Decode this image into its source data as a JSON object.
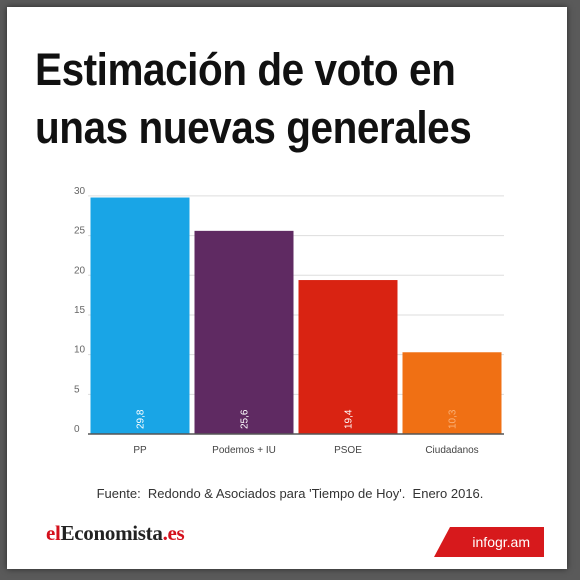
{
  "chart_data": {
    "type": "bar",
    "title": "Estimación de voto en unas nuevas generales",
    "categories": [
      "PP",
      "Podemos + IU",
      "PSOE",
      "Ciudadanos"
    ],
    "values": [
      29.8,
      25.6,
      19.4,
      10.3
    ],
    "value_labels": [
      "29,8",
      "25,6",
      "19,4",
      "10,3"
    ],
    "colors": [
      "#19a5e6",
      "#5f2a62",
      "#d92312",
      "#f07014"
    ],
    "yticks": [
      0,
      5,
      10,
      15,
      20,
      25,
      30
    ],
    "ylim": [
      0,
      31
    ],
    "grid": true,
    "xlabel": "",
    "ylabel": ""
  },
  "source": "Fuente:  Redondo & Asociados para 'Tiempo de Hoy'.  Enero 2016.",
  "logo": {
    "part1": "el",
    "part2": "Economista",
    "part3": ".es"
  },
  "badge": "infogr.am"
}
